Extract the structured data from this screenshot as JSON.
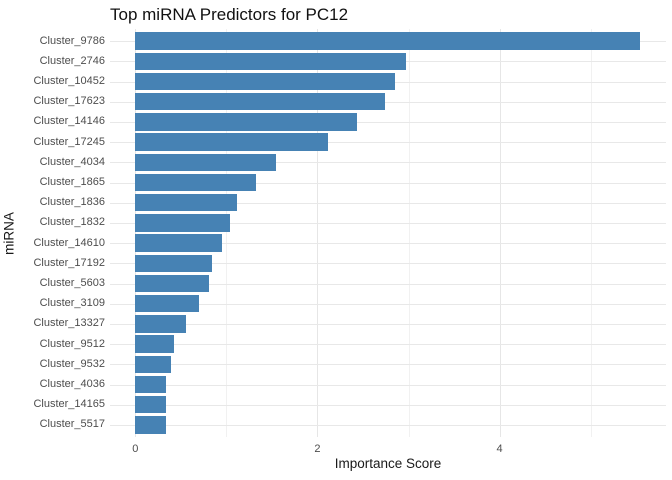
{
  "chart_data": {
    "type": "bar",
    "orientation": "horizontal",
    "title": "Top miRNA Predictors for PC12",
    "xlabel": "Importance Score",
    "ylabel": "miRNA",
    "categories": [
      "Cluster_9786",
      "Cluster_2746",
      "Cluster_10452",
      "Cluster_17623",
      "Cluster_14146",
      "Cluster_17245",
      "Cluster_4034",
      "Cluster_1865",
      "Cluster_1836",
      "Cluster_1832",
      "Cluster_14610",
      "Cluster_17192",
      "Cluster_5603",
      "Cluster_3109",
      "Cluster_13327",
      "Cluster_9512",
      "Cluster_9532",
      "Cluster_4036",
      "Cluster_14165",
      "Cluster_5517"
    ],
    "values": [
      5.54,
      2.97,
      2.85,
      2.74,
      2.43,
      2.12,
      1.54,
      1.32,
      1.12,
      1.04,
      0.95,
      0.84,
      0.81,
      0.7,
      0.56,
      0.42,
      0.39,
      0.34,
      0.34,
      0.34
    ],
    "x_ticks": [
      0,
      2,
      4
    ],
    "x_minor_ticks": [
      1,
      3,
      5
    ],
    "xlim": [
      0,
      5.83
    ],
    "bar_color": "#4682B4",
    "grid_color": "#e8e8e8",
    "background": "#FFFFFF",
    "grid": true,
    "legend": "none"
  }
}
